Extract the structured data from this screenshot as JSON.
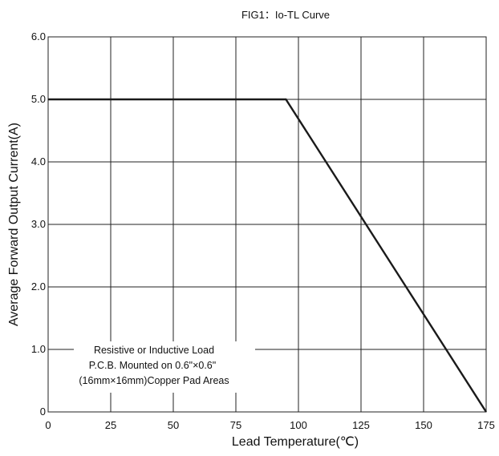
{
  "chart_data": {
    "type": "line",
    "title": "FIG1：Io-TL Curve",
    "xlabel": "Lead Temperature(℃)",
    "ylabel": "Average Forward Output Current(A)",
    "xlim": [
      0,
      175
    ],
    "ylim": [
      0,
      6.0
    ],
    "x_ticks": [
      "0",
      "25",
      "50",
      "75",
      "100",
      "125",
      "150",
      "175"
    ],
    "y_ticks": [
      "0",
      "1.0",
      "2.0",
      "3.0",
      "4.0",
      "5.0",
      "6.0"
    ],
    "grid": true,
    "series": [
      {
        "x": [
          0,
          95,
          175
        ],
        "y": [
          5.0,
          5.0,
          0
        ]
      }
    ],
    "annotation": [
      "Resistive or Inductive Load",
      "P.C.B. Mounted on 0.6\"×0.6\"",
      "(16mm×16mm)Copper Pad Areas"
    ],
    "colors": {
      "line": "#1a1a1a",
      "grid": "#222222"
    }
  }
}
